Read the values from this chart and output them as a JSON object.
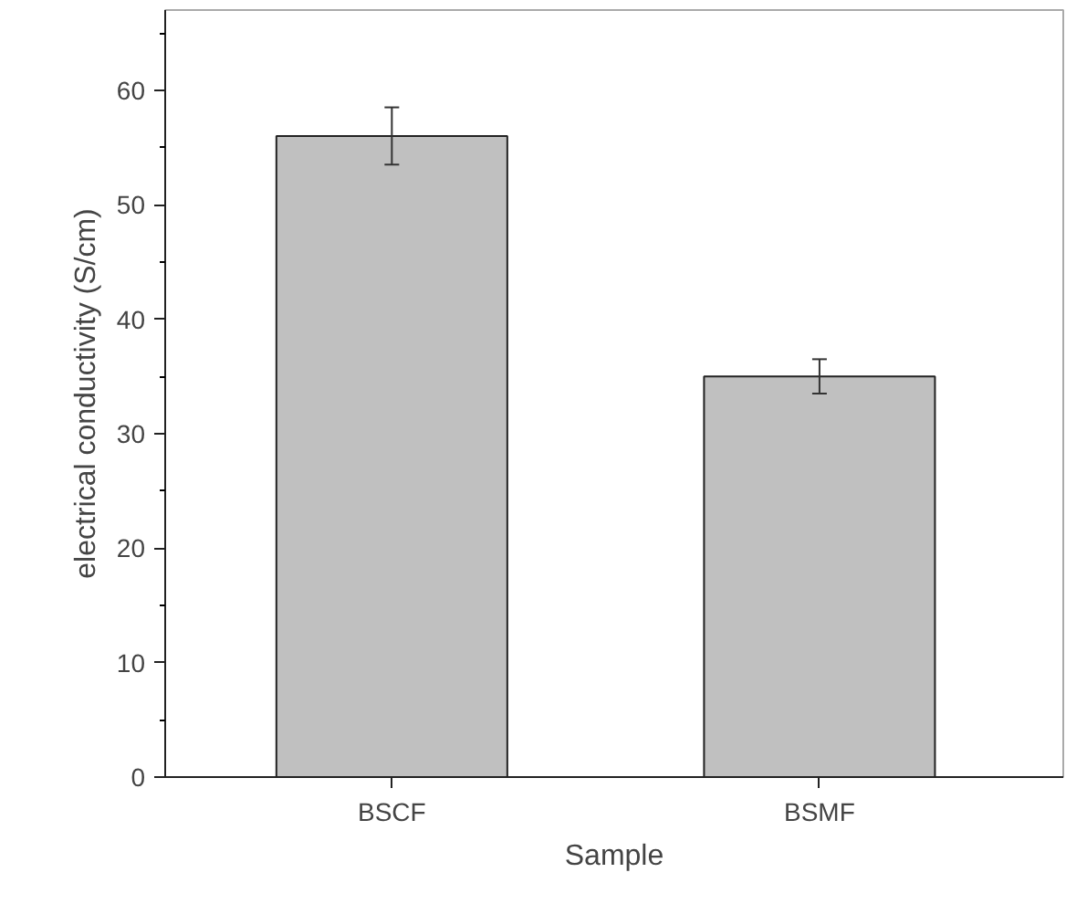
{
  "chart_data": {
    "type": "bar",
    "xlabel": "Sample",
    "ylabel": "electrical conductivity (S/cm)",
    "categories": [
      "BSCF",
      "BSMF"
    ],
    "values": [
      56,
      35
    ],
    "errors": [
      2.5,
      1.5
    ],
    "color": "#c0c0c0",
    "ylim": [
      0,
      67
    ],
    "yticks": [
      0,
      10,
      20,
      30,
      40,
      50,
      60
    ],
    "grid": false
  }
}
